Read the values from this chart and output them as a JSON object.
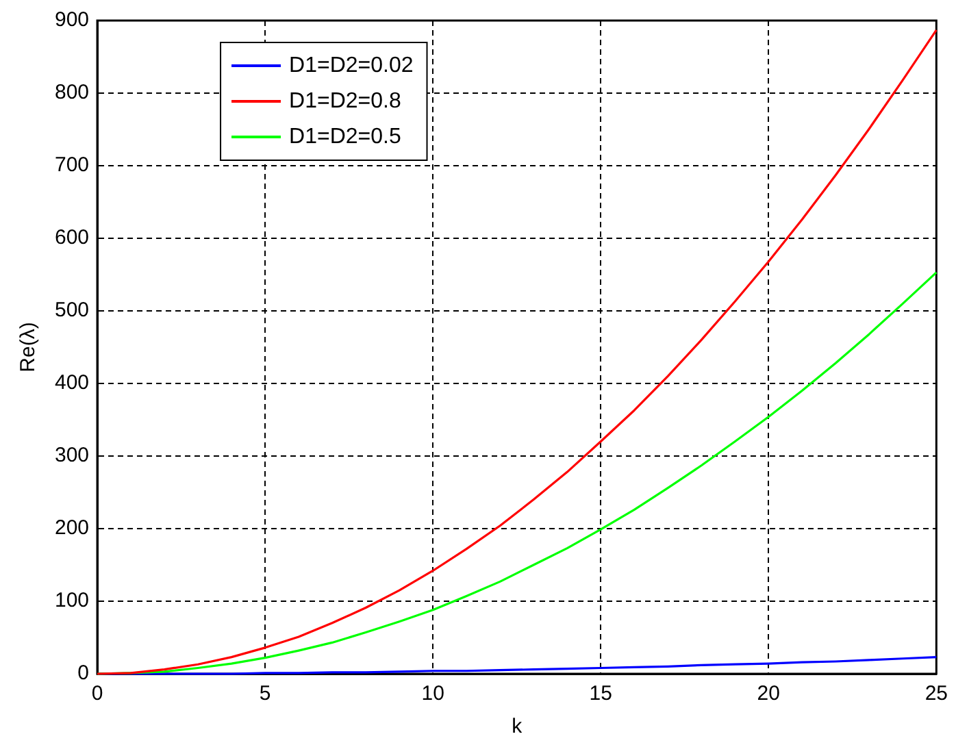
{
  "chart_data": {
    "type": "line",
    "xlabel": "k",
    "ylabel": "Re(λ)",
    "x": [
      0,
      1,
      2,
      3,
      4,
      5,
      6,
      7,
      8,
      9,
      10,
      11,
      12,
      13,
      14,
      15,
      16,
      17,
      18,
      19,
      20,
      21,
      22,
      23,
      24,
      25
    ],
    "series": [
      {
        "name": "D1=D2=0.02",
        "color": "#0000ff",
        "values": [
          0,
          0,
          0,
          0,
          0,
          1,
          1,
          2,
          2,
          3,
          4,
          4,
          5,
          6,
          7,
          8,
          9,
          10,
          12,
          13,
          14,
          16,
          17,
          19,
          21,
          23
        ]
      },
      {
        "name": "D1=D2=0.8",
        "color": "#ff0000",
        "values": [
          0,
          1,
          6,
          13,
          23,
          36,
          51,
          70,
          91,
          115,
          142,
          172,
          204,
          240,
          278,
          320,
          363,
          410,
          460,
          513,
          568,
          626,
          687,
          751,
          818,
          887
        ]
      },
      {
        "name": "D1=D2=0.5",
        "color": "#00ff00",
        "values": [
          0,
          1,
          3,
          8,
          14,
          22,
          32,
          43,
          57,
          72,
          88,
          107,
          127,
          150,
          173,
          199,
          226,
          256,
          287,
          320,
          354,
          390,
          428,
          468,
          510,
          553
        ]
      }
    ],
    "xlim": [
      0,
      25
    ],
    "xticks": [
      0,
      5,
      10,
      15,
      20,
      25
    ],
    "ylim": [
      0,
      900
    ],
    "yticks": [
      0,
      100,
      200,
      300,
      400,
      500,
      600,
      700,
      800,
      900
    ],
    "grid": true,
    "legend": "top left",
    "marker": "none",
    "line_style": "solid"
  }
}
